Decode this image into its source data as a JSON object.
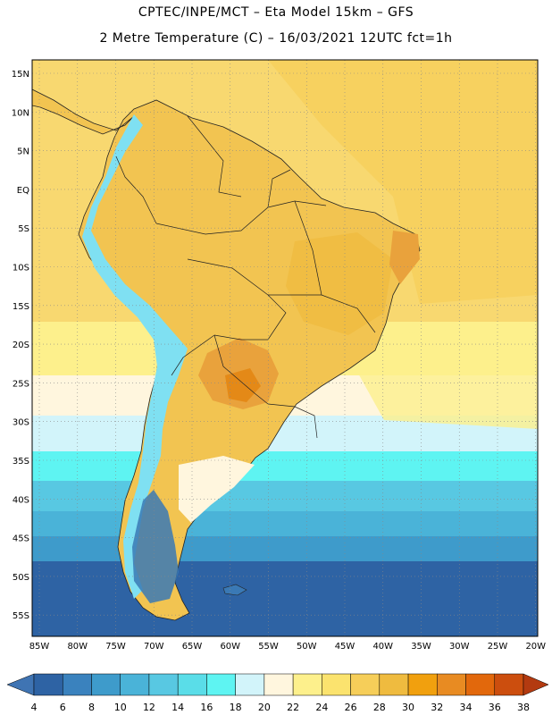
{
  "header": {
    "line1": "CPTEC/INPE/MCT –  Eta Model 15km – GFS",
    "line2": "2 Metre Temperature (C) – 16/03/2021 12UTC fct=1h"
  },
  "map": {
    "lat_labels": [
      "15N",
      "10N",
      "5N",
      "EQ",
      "5S",
      "10S",
      "15S",
      "20S",
      "25S",
      "30S",
      "35S",
      "40S",
      "45S",
      "50S",
      "55S"
    ],
    "lon_labels": [
      "85W",
      "80W",
      "75W",
      "70W",
      "65W",
      "60W",
      "55W",
      "50W",
      "45W",
      "40W",
      "35W",
      "30W",
      "25W",
      "20W"
    ],
    "colors": {
      "ocean_tropical": "#F8D870",
      "land_warm": "#F2C451",
      "land_hot": "#E9A23C",
      "andes_cold": "#7FE0F2",
      "andes_coldest": "#3A79B5",
      "south_ocean": "#2E63A4"
    }
  },
  "colorbar": {
    "ticks": [
      "4",
      "6",
      "8",
      "10",
      "12",
      "14",
      "16",
      "18",
      "20",
      "22",
      "24",
      "26",
      "28",
      "30",
      "32",
      "34",
      "36",
      "38"
    ],
    "colors": [
      "#3F74B3",
      "#2E63A4",
      "#3A82BE",
      "#3E9BCB",
      "#4AB3D8",
      "#58C8E2",
      "#5ADDE8",
      "#5EF4F2",
      "#D2F4FA",
      "#FFF6DE",
      "#FDF08C",
      "#FBE36E",
      "#F6CE59",
      "#EFBB3F",
      "#F1A00E",
      "#E88B22",
      "#E2680C",
      "#CC4E0E",
      "#B33A10"
    ]
  }
}
